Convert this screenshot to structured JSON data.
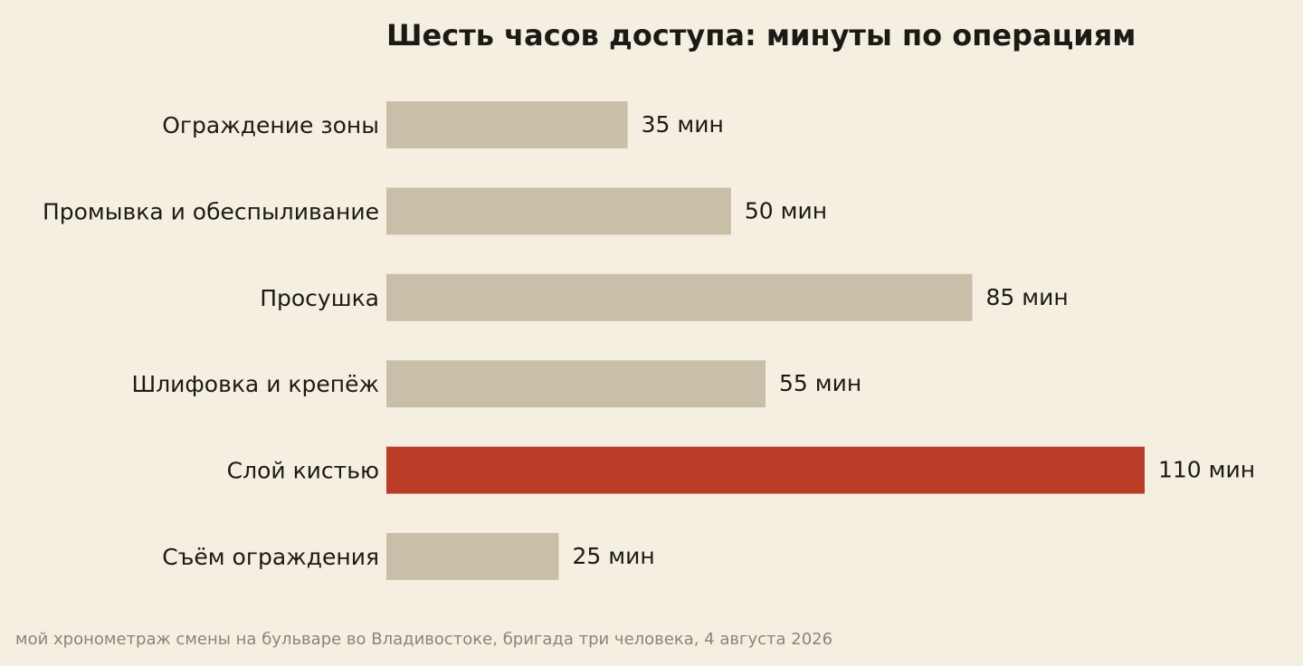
{
  "chart_data": {
    "type": "bar",
    "orientation": "horizontal",
    "title": "Шесть часов доступа: минуты по операциям",
    "categories": [
      "Ограждение зоны",
      "Промывка и обеспыливание",
      "Просушка",
      "Шлифовка и крепёж",
      "Слой кистью",
      "Съём ограждения"
    ],
    "values": [
      35,
      50,
      85,
      55,
      110,
      25
    ],
    "value_labels": [
      "35 мин",
      "50 мин",
      "85 мин",
      "55 мин",
      "110 мин",
      "25 мин"
    ],
    "highlight_index": 4,
    "xlim": [
      0,
      110
    ],
    "grid": false,
    "colors": {
      "bar": "#c9bfa8",
      "highlight": "#bb3d27",
      "background": "#f5efe2",
      "text": "#1c1a14",
      "footnote": "#8a857a"
    }
  },
  "footnote": "мой хронометраж смены на бульваре во Владивостоке, бригада три человека, 4 августа 2026"
}
